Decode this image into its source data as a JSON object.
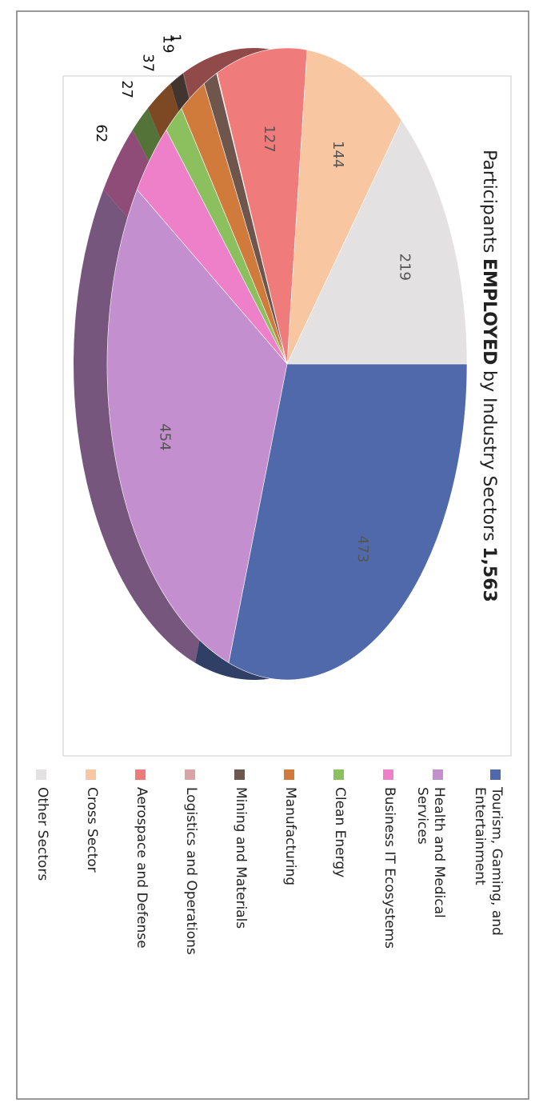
{
  "chart_data": {
    "type": "pie",
    "title": [
      "Participants",
      "EMPLOYED",
      "by Industry Sectors",
      "1,563"
    ],
    "title_bold": [
      false,
      true,
      false,
      true
    ],
    "categories": [
      "Tourism, Gaming, and Entertainment",
      "Health and Medical Services",
      "Business IT Ecosystems",
      "Clean Energy",
      "Manufacturing",
      "Mining and Materials",
      "Logistics and Operations",
      "Aerospace and Defense",
      "Cross Sector",
      "Other Sectors"
    ],
    "values": [
      473,
      454,
      62,
      27,
      37,
      19,
      1,
      127,
      144,
      219
    ],
    "colors": [
      "#4f69aa",
      "#c48fcf",
      "#ee7fc9",
      "#8cbf5e",
      "#d07a3c",
      "#6e564c",
      "#d8a4a4",
      "#f07b7b",
      "#f9c6a2",
      "#e3e1e1"
    ]
  }
}
